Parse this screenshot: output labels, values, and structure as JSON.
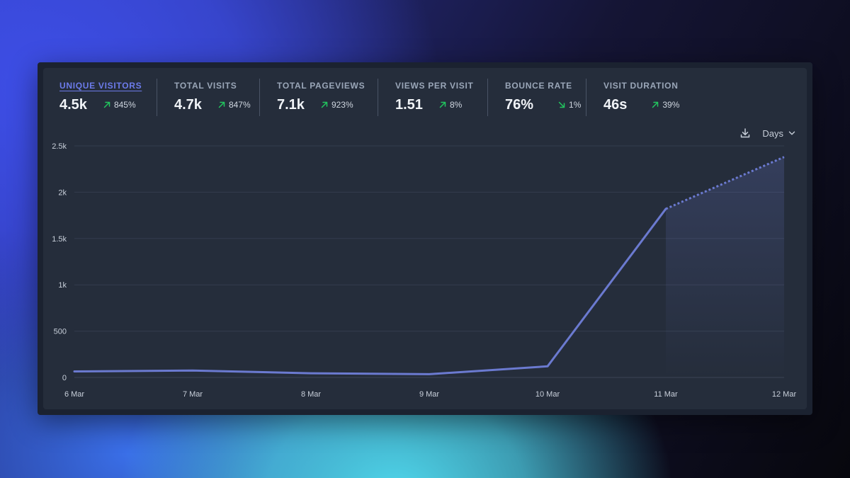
{
  "stats": [
    {
      "label": "UNIQUE VISITORS",
      "value": "4.5k",
      "change": "845%",
      "direction": "up",
      "active": true
    },
    {
      "label": "TOTAL VISITS",
      "value": "4.7k",
      "change": "847%",
      "direction": "up",
      "active": false
    },
    {
      "label": "TOTAL PAGEVIEWS",
      "value": "7.1k",
      "change": "923%",
      "direction": "up",
      "active": false
    },
    {
      "label": "VIEWS PER VISIT",
      "value": "1.51",
      "change": "8%",
      "direction": "up",
      "active": false
    },
    {
      "label": "BOUNCE RATE",
      "value": "76%",
      "change": "1%",
      "direction": "down",
      "active": false
    },
    {
      "label": "VISIT DURATION",
      "value": "46s",
      "change": "39%",
      "direction": "up",
      "active": false
    }
  ],
  "controls": {
    "download_icon": "download-icon",
    "interval_label": "Days",
    "interval_icon": "chevron-down-icon"
  },
  "colors": {
    "accent": "#6c7bea",
    "up": "#22c55e",
    "down": "#22c55e",
    "line": "#6b7ad0"
  },
  "chart_data": {
    "type": "line",
    "x": [
      "6 Mar",
      "7 Mar",
      "8 Mar",
      "9 Mar",
      "10 Mar",
      "11 Mar",
      "12 Mar"
    ],
    "series": [
      {
        "values": [
          65,
          75,
          45,
          35,
          120,
          1820,
          2380
        ],
        "dashed_from_index": 5
      }
    ],
    "y_ticks": [
      "0",
      "500",
      "1k",
      "1.5k",
      "2k",
      "2.5k"
    ],
    "y_tick_values": [
      0,
      500,
      1000,
      1500,
      2000,
      2500
    ],
    "ylim": [
      0,
      2500
    ],
    "grid": true,
    "area_fill_from_index": 5
  }
}
